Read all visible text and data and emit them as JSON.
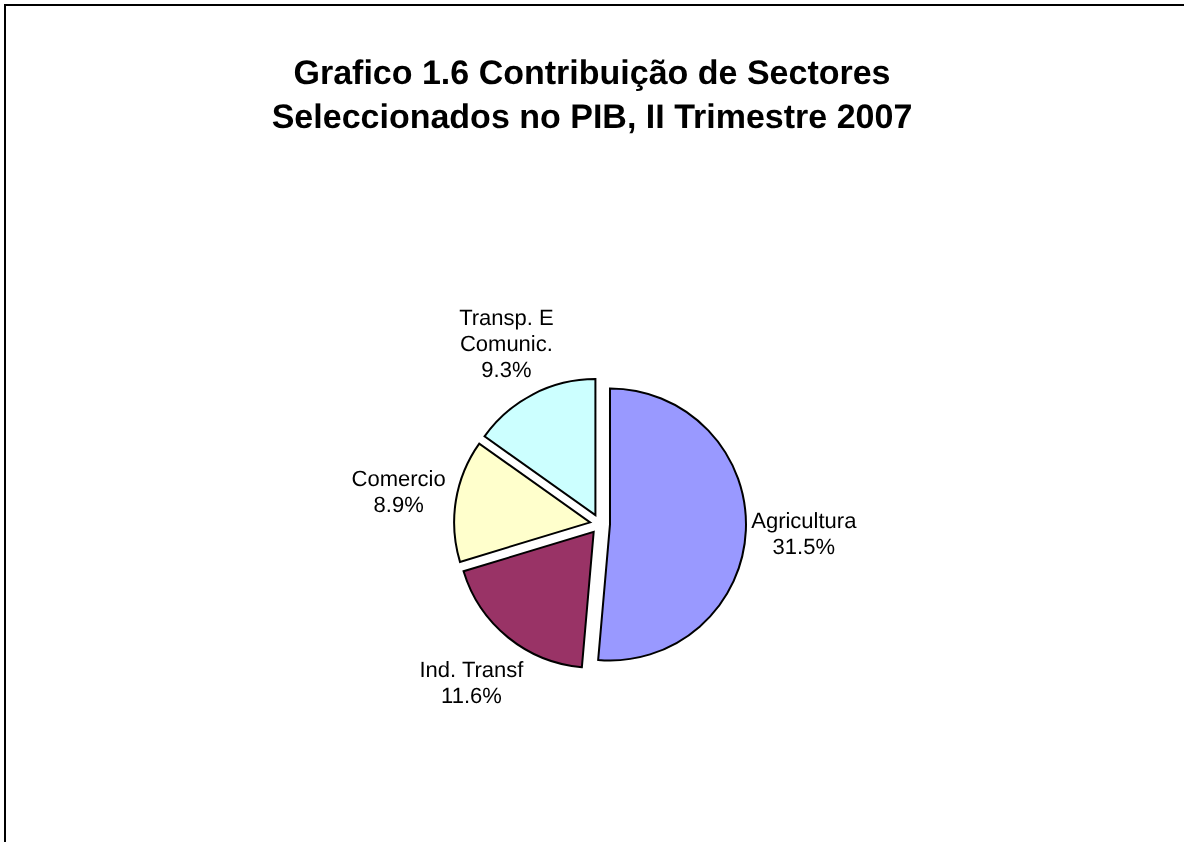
{
  "chart_data": {
    "type": "pie",
    "title": "Grafico 1.6 Contribuição de Sectores Seleccionados no PIB, II Trimestre 2007",
    "categories": [
      "Agricultura",
      "Ind. Transf",
      "Comercio",
      "Transp. E Comunic."
    ],
    "values": [
      31.5,
      11.6,
      8.9,
      9.3
    ],
    "value_labels": [
      "31.5%",
      "11.6%",
      "8.9%",
      "9.3%"
    ],
    "colors": [
      "#9999ff",
      "#993366",
      "#ffffcc",
      "#ccffff"
    ]
  }
}
